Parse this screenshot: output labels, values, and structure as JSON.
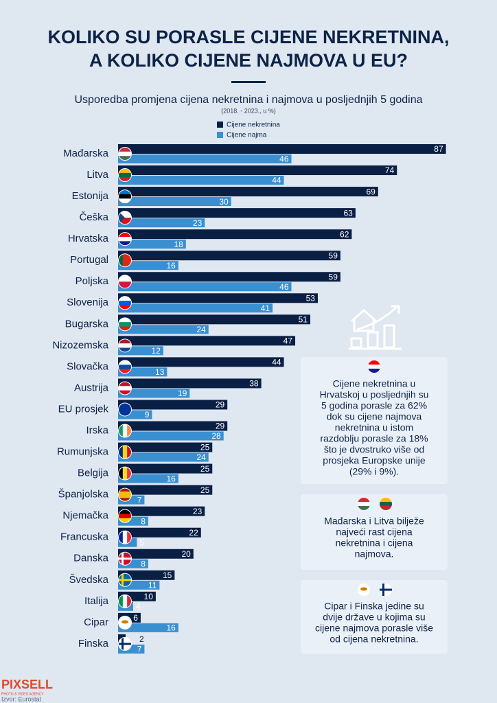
{
  "chart_data": {
    "type": "bar",
    "orientation": "horizontal",
    "title": [
      "KOLIKO SU PORASLE CIJENE NEKRETNINA,",
      "A KOLIKO CIJENE NAJMOVA U EU?"
    ],
    "subtitle": "Usporedba promjena cijena nekretnina i najmova u posljednjih 5 godina",
    "note": "(2018. - 2023., u %)",
    "categories": [
      "Mađarska",
      "Litva",
      "Estonija",
      "Češka",
      "Hrvatska",
      "Portugal",
      "Poljska",
      "Slovenija",
      "Bugarska",
      "Nizozemska",
      "Slovačka",
      "Austrija",
      "EU prosjek",
      "Irska",
      "Rumunjska",
      "Belgija",
      "Španjolska",
      "Njemačka",
      "Francuska",
      "Danska",
      "Švedska",
      "Italija",
      "Cipar",
      "Finska"
    ],
    "series": [
      {
        "name": "Cijene nekretnina",
        "color": "#0a1f44",
        "values": [
          87,
          74,
          69,
          63,
          62,
          59,
          59,
          53,
          51,
          47,
          44,
          38,
          29,
          29,
          25,
          25,
          25,
          23,
          22,
          20,
          15,
          10,
          6,
          2
        ]
      },
      {
        "name": "Cijene najma",
        "color": "#3a8fd0",
        "values": [
          46,
          44,
          30,
          23,
          18,
          16,
          46,
          41,
          24,
          12,
          13,
          19,
          9,
          28,
          24,
          16,
          7,
          8,
          5,
          8,
          11,
          4,
          16,
          7
        ]
      }
    ],
    "annotations": [
      [
        "Cijene nekretnina u",
        "Hrvatskoj u posljednjih su",
        "5 godina porasle za 62%",
        "dok su cijene najmova",
        "nekretnina u istom",
        "razdoblju porasle za 18%",
        "što je dvostruko više od",
        "prosjeka Europske unije",
        "(29% i 9%)."
      ],
      [
        "Mađarska i Litva bilježe",
        "najveći rast cijena",
        "nekretnina i cijena",
        "najmova."
      ],
      [
        "Cipar i Finska jedine su",
        "dvije države u kojima su",
        "cijene najmova porasle više",
        "od cijena nekretnina."
      ]
    ],
    "brand": "PIXSELL",
    "brand_tagline": "PHOTO & VIDEO AGENCY",
    "source": "Izvor: Eurostat"
  }
}
